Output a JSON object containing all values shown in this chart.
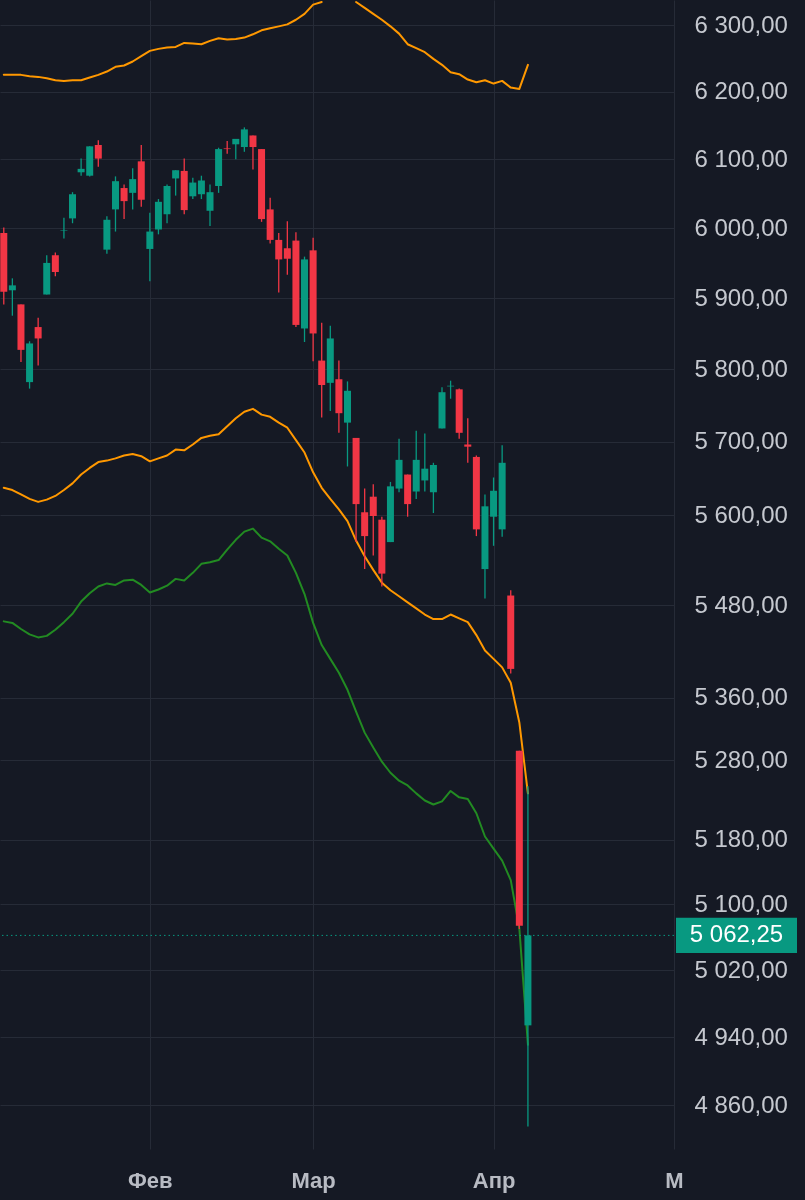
{
  "chart_data": {
    "type": "candlestick",
    "categories": [
      null,
      null,
      null,
      null,
      null,
      null,
      null,
      null,
      null,
      null,
      null,
      null,
      null,
      null,
      null,
      null,
      null,
      "Фев",
      null,
      null,
      null,
      null,
      null,
      null,
      null,
      null,
      null,
      null,
      null,
      null,
      null,
      null,
      null,
      null,
      null,
      null,
      "Мар",
      null,
      null,
      null,
      null,
      null,
      null,
      null,
      null,
      null,
      null,
      null,
      null,
      null,
      null,
      null,
      null,
      null,
      null,
      null,
      null,
      "Апр",
      null,
      null,
      null,
      null,
      null,
      null,
      null,
      null,
      null,
      null,
      null,
      null,
      null,
      null,
      null,
      null,
      null,
      null,
      null,
      null,
      "М"
    ],
    "ohlc": [
      [
        5993,
        6001,
        5891,
        5909
      ],
      [
        5911,
        5928,
        5875,
        5918
      ],
      [
        5891,
        5891,
        5810,
        5827
      ],
      [
        5782,
        5839,
        5773,
        5836
      ],
      [
        5859,
        5872,
        5805,
        5843
      ],
      [
        5905,
        5961,
        5905,
        5950
      ],
      [
        5961,
        5965,
        5931,
        5937
      ],
      [
        5996,
        6015,
        5985,
        5997
      ],
      [
        6014,
        6052,
        6007,
        6049
      ],
      [
        6081,
        6101,
        6076,
        6086
      ],
      [
        6076,
        6119,
        6075,
        6119
      ],
      [
        6121,
        6128,
        6089,
        6101
      ],
      [
        5969,
        6017,
        5963,
        6012
      ],
      [
        6027,
        6075,
        5995,
        6068
      ],
      [
        6058,
        6063,
        6013,
        6039
      ],
      [
        6051,
        6087,
        6027,
        6071
      ],
      [
        6097,
        6121,
        6031,
        6041
      ],
      [
        5970,
        6022,
        5924,
        5995
      ],
      [
        5998,
        6042,
        5991,
        6038
      ],
      [
        6020,
        6063,
        6007,
        6061
      ],
      [
        6072,
        6084,
        6047,
        6084
      ],
      [
        6083,
        6101,
        6020,
        6026
      ],
      [
        6046,
        6073,
        6042,
        6066
      ],
      [
        6049,
        6076,
        6042,
        6069
      ],
      [
        6025,
        6063,
        6003,
        6052
      ],
      [
        6061,
        6117,
        6051,
        6115
      ],
      [
        6116,
        6127,
        6108,
        6115
      ],
      [
        6122,
        6130,
        6100,
        6130
      ],
      [
        6118,
        6147,
        6111,
        6144
      ],
      [
        6135,
        6135,
        6085,
        6118
      ],
      [
        6115,
        6115,
        6009,
        6013
      ],
      [
        6027,
        6044,
        5978,
        5983
      ],
      [
        5983,
        5993,
        5908,
        5955
      ],
      [
        5971,
        6010,
        5933,
        5956
      ],
      [
        5982,
        5994,
        5859,
        5862
      ],
      [
        5857,
        5959,
        5838,
        5955
      ],
      [
        5968,
        5986,
        5811,
        5850
      ],
      [
        5812,
        5865,
        5733,
        5778
      ],
      [
        5781,
        5861,
        5742,
        5843
      ],
      [
        5786,
        5812,
        5712,
        5739
      ],
      [
        5726,
        5783,
        5666,
        5770
      ],
      [
        5705,
        5705,
        5564,
        5615
      ],
      [
        5604,
        5636,
        5528,
        5572
      ],
      [
        5625,
        5642,
        5546,
        5599
      ],
      [
        5594,
        5598,
        5505,
        5522
      ],
      [
        5564,
        5645,
        5564,
        5639
      ],
      [
        5636,
        5704,
        5631,
        5675
      ],
      [
        5655,
        5655,
        5598,
        5615
      ],
      [
        5632,
        5715,
        5622,
        5675
      ],
      [
        5647,
        5711,
        5632,
        5663
      ],
      [
        5631,
        5671,
        5603,
        5668
      ],
      [
        5718,
        5775,
        5718,
        5768
      ],
      [
        5776,
        5784,
        5759,
        5777
      ],
      [
        5772,
        5773,
        5704,
        5712
      ],
      [
        5696,
        5732,
        5671,
        5693
      ],
      [
        5679,
        5681,
        5572,
        5581
      ],
      [
        5528,
        5628,
        5489,
        5612
      ],
      [
        5598,
        5651,
        5559,
        5633
      ],
      [
        5581,
        5695,
        5571,
        5671
      ],
      [
        5493,
        5500,
        5391,
        5397
      ],
      [
        5292,
        5292,
        5070,
        5074
      ],
      [
        4954,
        5247,
        4835,
        5062.25
      ],
      null,
      null,
      null,
      null,
      null,
      null,
      null,
      null,
      null,
      null,
      null,
      null,
      null,
      null,
      null,
      null,
      null
    ],
    "colors": [
      "#f23645",
      "#089981",
      "#f23645",
      "#089981",
      "#f23645",
      "#089981",
      "#f23645",
      "#089981",
      "#089981",
      "#089981",
      "#089981",
      "#f23645",
      "#089981",
      "#089981",
      "#f23645",
      "#089981",
      "#f23645",
      "#089981",
      "#089981",
      "#089981",
      "#089981",
      "#f23645",
      "#089981",
      "#089981",
      "#089981",
      "#089981",
      "#f23645",
      "#089981",
      "#089981",
      "#f23645",
      "#f23645",
      "#f23645",
      "#f23645",
      "#f23645",
      "#f23645",
      "#089981",
      "#f23645",
      "#f23645",
      "#089981",
      "#f23645",
      "#089981",
      "#f23645",
      "#f23645",
      "#f23645",
      "#f23645",
      "#089981",
      "#089981",
      "#f23645",
      "#089981",
      "#089981",
      "#089981",
      "#089981",
      "#089981",
      "#f23645",
      "#f23645",
      "#f23645",
      "#089981",
      "#089981",
      "#089981",
      "#f23645",
      "#f23645",
      "#089981",
      null,
      null,
      null,
      null,
      null,
      null,
      null,
      null,
      null,
      null,
      null,
      null,
      null,
      null,
      null,
      null,
      null
    ],
    "series": [
      {
        "type": "line",
        "color": "#ff9800",
        "values": [
          6225,
          6225,
          6225,
          6223,
          6222,
          6220,
          6217,
          6216,
          6217,
          6217,
          6221,
          6225,
          6230,
          6237,
          6239,
          6245,
          6253,
          6261,
          6264,
          6266,
          6267,
          6273,
          6272,
          6271,
          6276,
          6280,
          6278,
          6279,
          6281,
          6286,
          6292,
          6295,
          6298,
          6301,
          6308,
          6317,
          6331,
          6335,
          null,
          null,
          null,
          6335,
          6326,
          6317,
          6308,
          6298,
          6287,
          6271,
          6265,
          6259,
          6249,
          6240,
          6229,
          6226,
          6218,
          6214,
          6217,
          6212,
          6216,
          6206,
          6204,
          6240,
          null,
          null,
          null,
          null,
          null,
          null,
          null,
          null,
          null,
          null,
          null,
          null,
          null,
          null,
          null,
          null,
          null
        ]
      },
      {
        "type": "line",
        "color": "#ff9800",
        "values": [
          5637,
          5634,
          5628,
          5622,
          5618,
          5621,
          5626,
          5634,
          5643,
          5655,
          5664,
          5672,
          5674,
          5677,
          5681,
          5683,
          5680,
          5673,
          5677,
          5681,
          5689,
          5688,
          5696,
          5705,
          5708,
          5710,
          5721,
          5732,
          5741,
          5745,
          5737,
          5734,
          5726,
          5719,
          5702,
          5685,
          5658,
          5637,
          5622,
          5608,
          5592,
          5566,
          5545,
          5527,
          5510,
          5500,
          5492,
          5484,
          5476,
          5468,
          5462,
          5462,
          5468,
          5463,
          5458,
          5441,
          5421,
          5410,
          5399,
          5379,
          5328,
          5238,
          null,
          null,
          null,
          null,
          null,
          null,
          null,
          null,
          null,
          null,
          null,
          null,
          null,
          null,
          null,
          null,
          null
        ]
      },
      {
        "type": "line",
        "color": "#228b22",
        "values": [
          5459,
          5457,
          5449,
          5442,
          5438,
          5440,
          5448,
          5458,
          5469,
          5485,
          5496,
          5505,
          5509,
          5507,
          5513,
          5514,
          5507,
          5497,
          5501,
          5506,
          5515,
          5513,
          5523,
          5535,
          5537,
          5540,
          5554,
          5567,
          5578,
          5582,
          5570,
          5565,
          5555,
          5546,
          5523,
          5495,
          5457,
          5428,
          5410,
          5392,
          5370,
          5342,
          5315,
          5296,
          5278,
          5264,
          5254,
          5248,
          5238,
          5229,
          5224,
          5228,
          5241,
          5233,
          5231,
          5213,
          5184,
          5169,
          5154,
          5130,
          5071,
          4931,
          null,
          null,
          null,
          null,
          null,
          null,
          null,
          null,
          null,
          null,
          null,
          null,
          null,
          null,
          null,
          null,
          null
        ]
      }
    ],
    "ylim": [
      4809,
      6338
    ],
    "yticks": [
      {
        "value": 6300,
        "label": "6 300,00"
      },
      {
        "value": 6200,
        "label": "6 200,00"
      },
      {
        "value": 6100,
        "label": "6 100,00"
      },
      {
        "value": 6000,
        "label": "6 000,00"
      },
      {
        "value": 5900,
        "label": "5 900,00"
      },
      {
        "value": 5800,
        "label": "5 800,00"
      },
      {
        "value": 5700,
        "label": "5 700,00"
      },
      {
        "value": 5600,
        "label": "5 600,00"
      },
      {
        "value": 5480,
        "label": "5 480,00"
      },
      {
        "value": 5360,
        "label": "5 360,00"
      },
      {
        "value": 5280,
        "label": "5 280,00"
      },
      {
        "value": 5180,
        "label": "5 180,00"
      },
      {
        "value": 5100,
        "label": "5 100,00"
      },
      {
        "value": 5020,
        "label": "5 020,00"
      },
      {
        "value": 4940,
        "label": "4 940,00"
      },
      {
        "value": 4860,
        "label": "4 860,00"
      }
    ],
    "log": true,
    "grid": true,
    "ref_lines": [
      {
        "axis": "y",
        "value": 5062.25,
        "label": "5 062,25",
        "color": "#089981",
        "line_style": "dotted"
      }
    ]
  }
}
